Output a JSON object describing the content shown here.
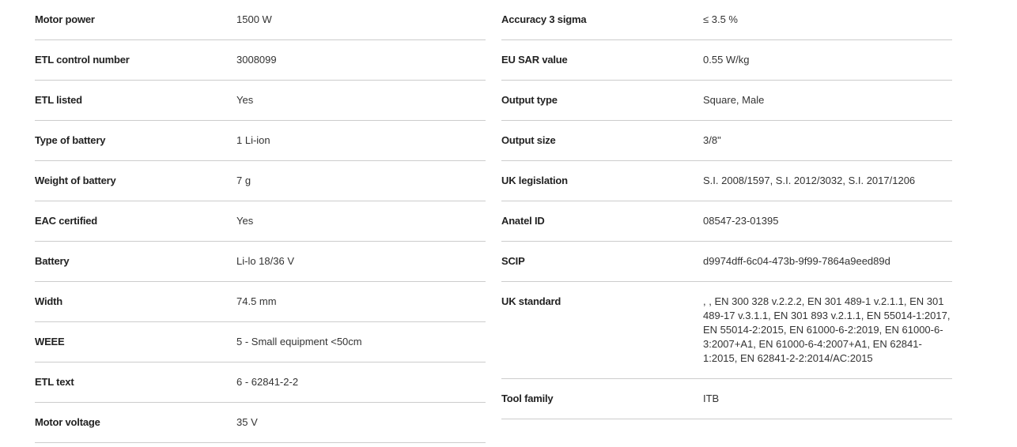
{
  "left": [
    {
      "label": "Motor power",
      "value": "1500 W"
    },
    {
      "label": "ETL control number",
      "value": "3008099"
    },
    {
      "label": "ETL listed",
      "value": "Yes"
    },
    {
      "label": "Type of battery",
      "value": "1 Li-ion"
    },
    {
      "label": "Weight of battery",
      "value": "7 g"
    },
    {
      "label": "EAC certified",
      "value": "Yes"
    },
    {
      "label": "Battery",
      "value": "Li-lo 18/36 V"
    },
    {
      "label": "Width",
      "value": "74.5 mm"
    },
    {
      "label": "WEEE",
      "value": "5 - Small equipment <50cm"
    },
    {
      "label": "ETL text",
      "value": "6 - 62841-2-2"
    },
    {
      "label": "Motor voltage",
      "value": "35 V"
    }
  ],
  "right": [
    {
      "label": "Accuracy 3 sigma",
      "value": "≤ 3.5 %"
    },
    {
      "label": "EU SAR value",
      "value": "0.55 W/kg"
    },
    {
      "label": "Output type",
      "value": "Square, Male"
    },
    {
      "label": "Output size",
      "value": "3/8\""
    },
    {
      "label": "UK legislation",
      "value": "S.I. 2008/1597, S.I. 2012/3032, S.I. 2017/1206"
    },
    {
      "label": "Anatel ID",
      "value": "08547-23-01395"
    },
    {
      "label": "SCIP",
      "value": "d9974dff-6c04-473b-9f99-7864a9eed89d"
    },
    {
      "label": "UK standard",
      "value": ", , EN 300 328 v.2.2.2, EN 301 489-1 v.2.1.1, EN 301 489-17 v.3.1.1, EN 301 893 v.2.1.1, EN 55014-1:2017, EN 55014-2:2015, EN 61000-6-2:2019, EN 61000-6-3:2007+A1, EN 61000-6-4:2007+A1, EN 62841-1:2015, EN 62841-2-2:2014/AC:2015"
    },
    {
      "label": "Tool family",
      "value": "ITB"
    }
  ]
}
